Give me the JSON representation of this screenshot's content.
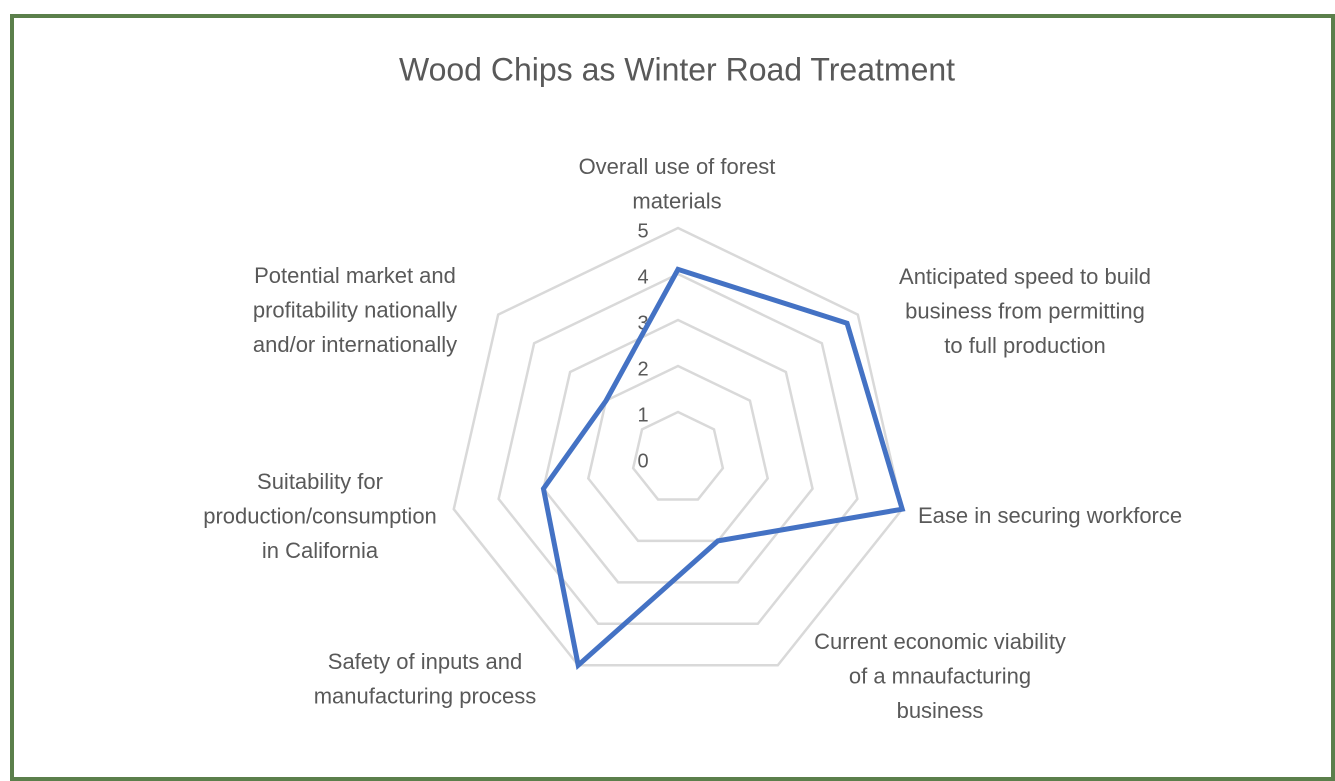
{
  "chart_data": {
    "type": "radar",
    "title": "Wood Chips as Winter Road Treatment",
    "categories": [
      [
        "Overall use of forest",
        "materials"
      ],
      [
        "Anticipated speed to build",
        "business from permitting",
        "to full production"
      ],
      [
        "Ease in securing workforce"
      ],
      [
        "Current economic viability",
        "of a mnaufacturing",
        "business"
      ],
      [
        "Safety of inputs and",
        "manufacturing process"
      ],
      [
        "Suitability for",
        "production/consumption",
        "in California"
      ],
      [
        "Potential market and",
        "profitability nationally",
        "and/or internationally"
      ]
    ],
    "series": [
      {
        "name": "Wood Chips",
        "color": "#4472c4",
        "values": [
          4.1,
          4.7,
          5,
          2,
          5,
          3,
          2
        ]
      }
    ],
    "rlim": [
      0,
      5
    ],
    "rticks": [
      0,
      1,
      2,
      3,
      4,
      5
    ],
    "grid": true
  }
}
